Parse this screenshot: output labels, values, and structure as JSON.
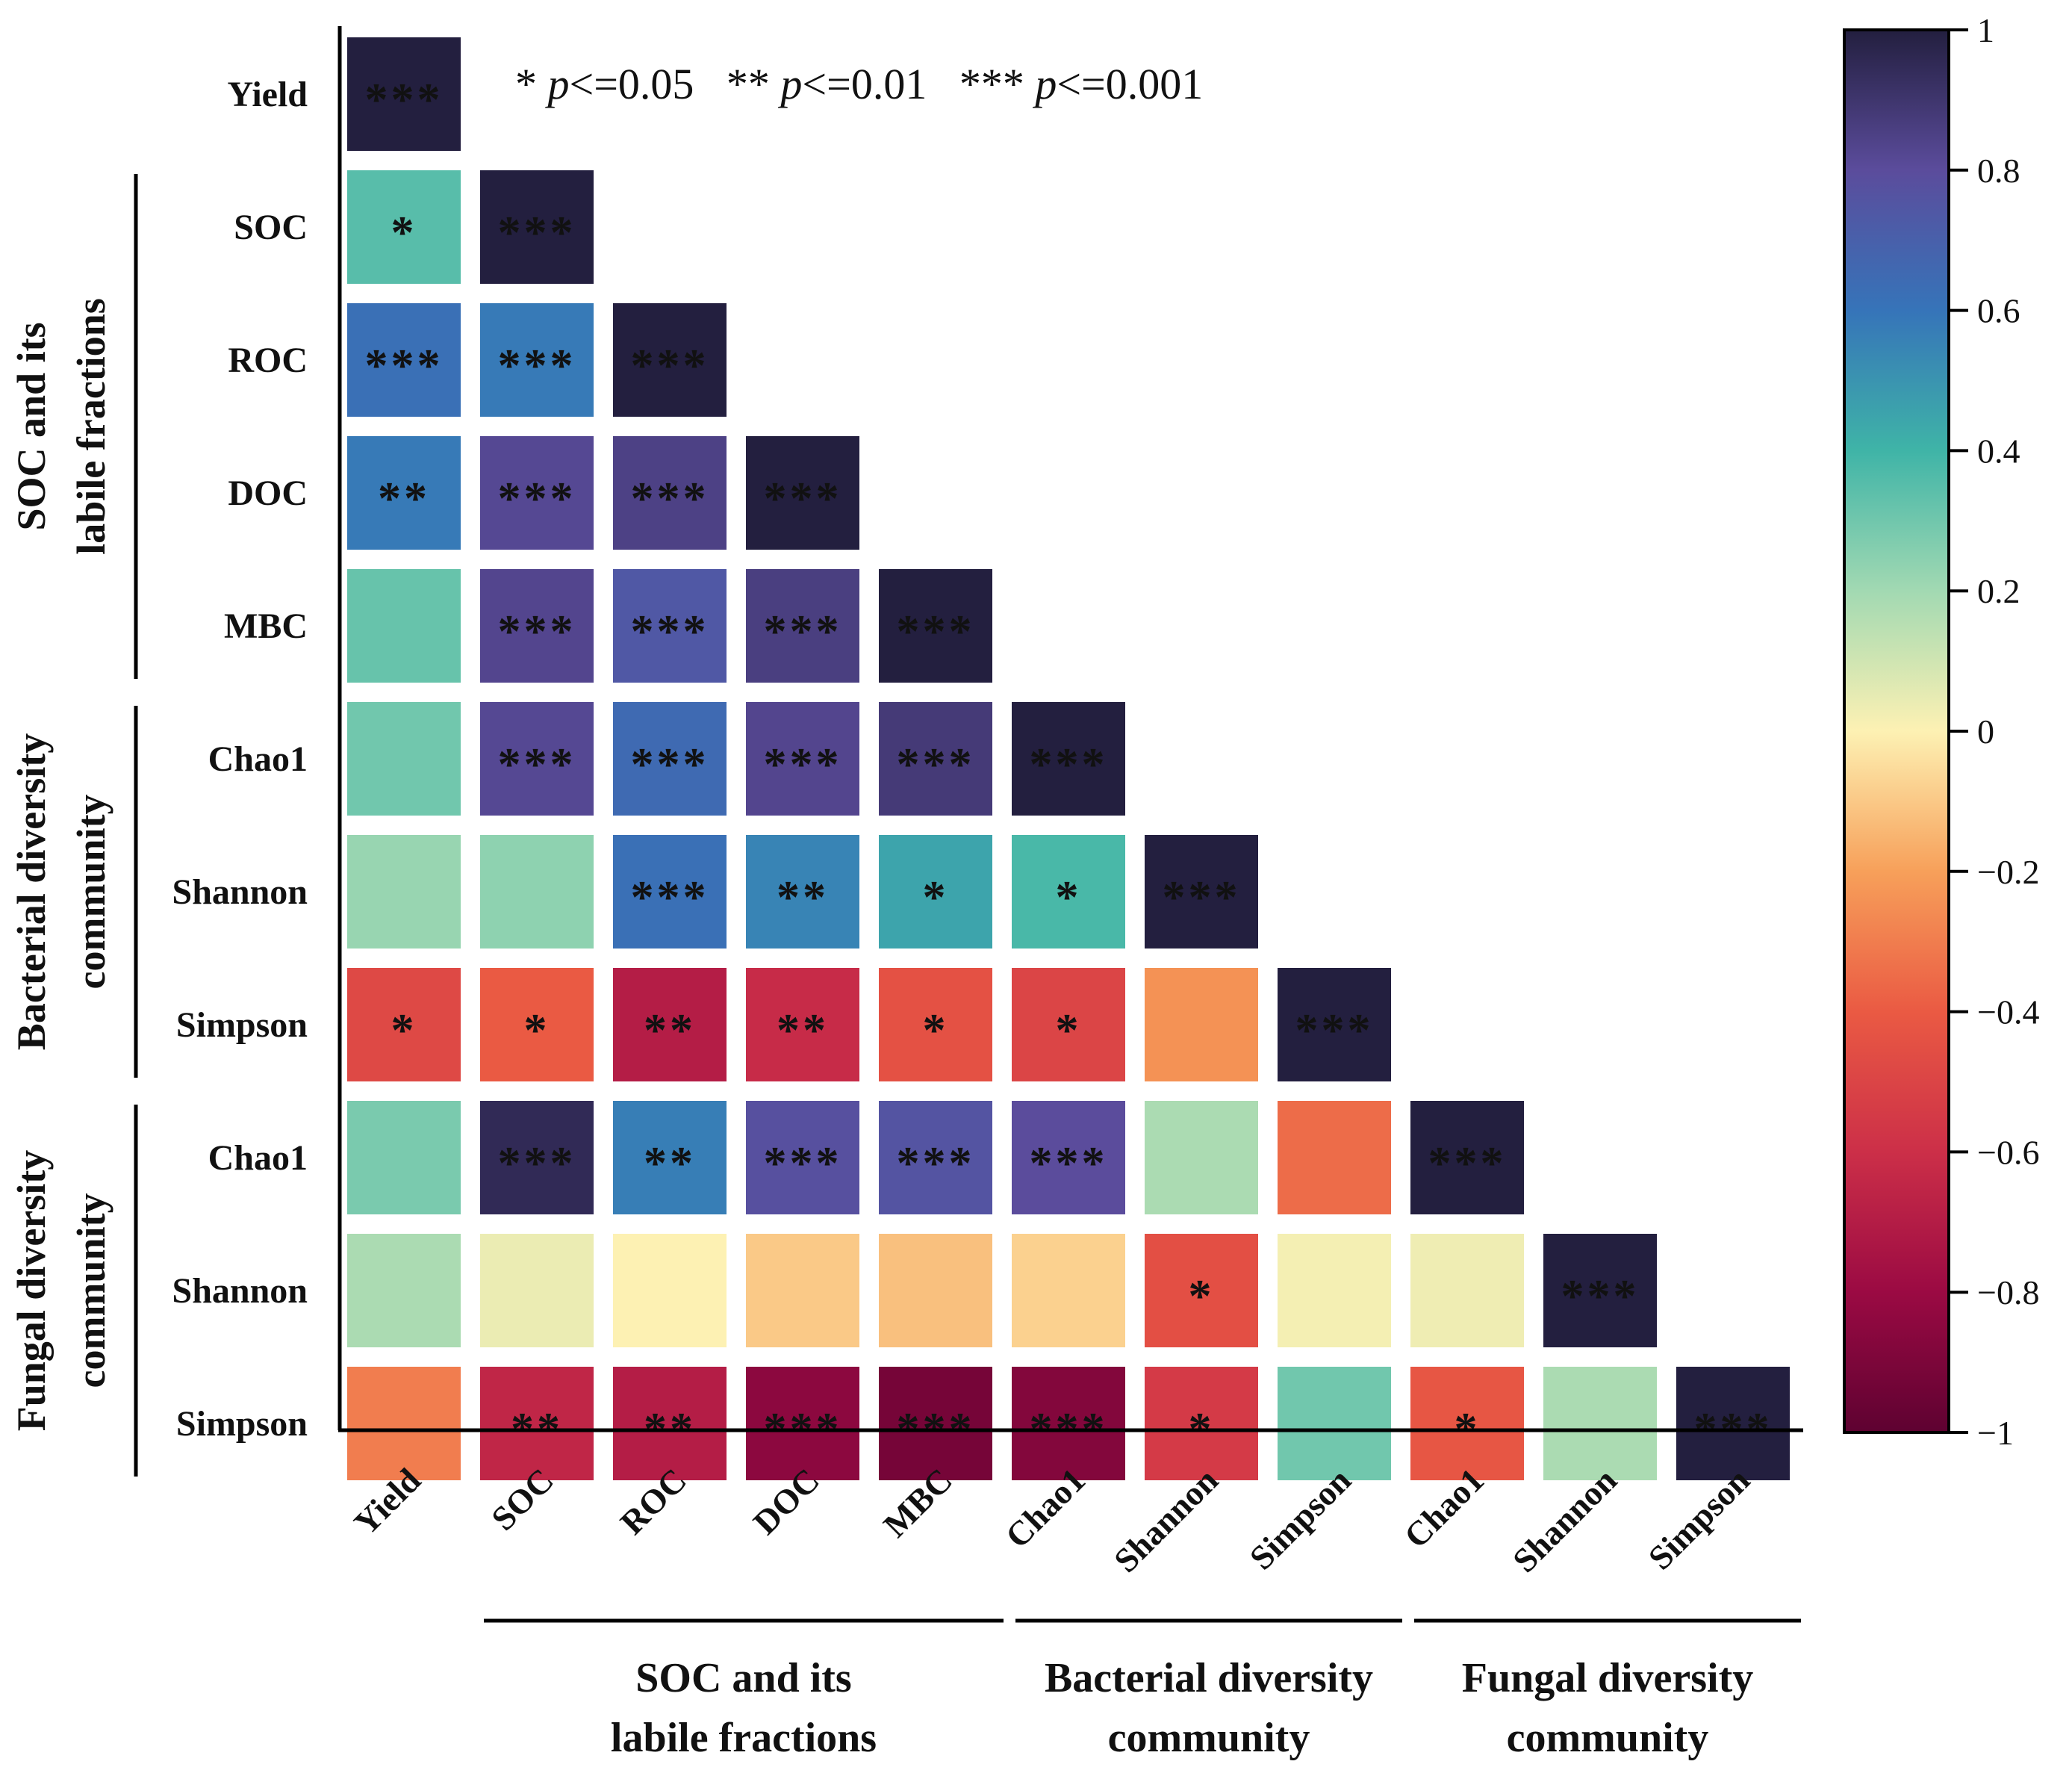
{
  "chart_data": {
    "type": "heatmap",
    "title": "",
    "row_labels": [
      "Yield",
      "SOC",
      "ROC",
      "DOC",
      "MBC",
      "Chao1",
      "Shannon",
      "Simpson",
      "Chao1",
      "Shannon",
      "Simpson"
    ],
    "column_labels": [
      "Yield",
      "SOC",
      "ROC",
      "DOC",
      "MBC",
      "Chao1",
      "Shannon",
      "Simpson",
      "Chao1",
      "Shannon",
      "Simpson"
    ],
    "values": [
      [
        1.0
      ],
      [
        0.35,
        1.0
      ],
      [
        0.62,
        0.58,
        1.0
      ],
      [
        0.58,
        0.82,
        0.85,
        1.0
      ],
      [
        0.32,
        0.83,
        0.74,
        0.86,
        1.0
      ],
      [
        0.3,
        0.82,
        0.65,
        0.83,
        0.88,
        1.0
      ],
      [
        0.22,
        0.24,
        0.62,
        0.55,
        0.45,
        0.38,
        1.0
      ],
      [
        -0.48,
        -0.4,
        -0.7,
        -0.62,
        -0.44,
        -0.5,
        -0.24,
        1.0
      ],
      [
        0.28,
        0.95,
        0.57,
        0.78,
        0.76,
        0.8,
        0.18,
        -0.35,
        1.0
      ],
      [
        0.18,
        0.04,
        0.0,
        -0.1,
        -0.12,
        -0.08,
        -0.45,
        0.02,
        0.03,
        1.0
      ],
      [
        -0.3,
        -0.65,
        -0.7,
        -0.85,
        -0.92,
        -0.88,
        -0.55,
        0.3,
        -0.42,
        0.18,
        1.0
      ]
    ],
    "significance": [
      [
        "***"
      ],
      [
        "*",
        "***"
      ],
      [
        "***",
        "***",
        "***"
      ],
      [
        "**",
        "***",
        "***",
        "***"
      ],
      [
        "",
        "***",
        "***",
        "***",
        "***"
      ],
      [
        "",
        "***",
        "***",
        "***",
        "***",
        "***"
      ],
      [
        "",
        "",
        "***",
        "**",
        "*",
        "*",
        "***"
      ],
      [
        "*",
        "*",
        "**",
        "**",
        "*",
        "*",
        "",
        "***"
      ],
      [
        "",
        "***",
        "**",
        "***",
        "***",
        "***",
        "",
        "",
        "***"
      ],
      [
        "",
        "",
        "",
        "",
        "",
        "",
        "*",
        "",
        "",
        "***"
      ],
      [
        "",
        "**",
        "**",
        "***",
        "***",
        "***",
        "*",
        "",
        "*",
        "",
        "***"
      ]
    ],
    "significance_legend": [
      {
        "stars": "*",
        "p_text": "p",
        "rest": "<=0.05"
      },
      {
        "stars": "**",
        "p_text": "p",
        "rest": "<=0.01"
      },
      {
        "stars": "***",
        "p_text": "p",
        "rest": "<=0.001"
      }
    ],
    "row_groups": [
      {
        "label": "SOC and its labile fractions",
        "lines": [
          "SOC and its",
          "labile fractions"
        ],
        "rows": [
          1,
          4
        ]
      },
      {
        "label": "Bacterial diversity community",
        "lines": [
          "Bacterial diversity",
          "community"
        ],
        "rows": [
          5,
          7
        ]
      },
      {
        "label": "Fungal diversity community",
        "lines": [
          "Fungal diversity",
          "community"
        ],
        "rows": [
          8,
          10
        ]
      }
    ],
    "column_groups": [
      {
        "label": "SOC and its labile fractions",
        "lines": [
          "SOC and its",
          "labile fractions"
        ],
        "cols": [
          1,
          4
        ]
      },
      {
        "label": "Bacterial diversity community",
        "lines": [
          "Bacterial diversity",
          "community"
        ],
        "cols": [
          5,
          7
        ]
      },
      {
        "label": "Fungal diversity community",
        "lines": [
          "Fungal diversity",
          "community"
        ],
        "cols": [
          8,
          10
        ]
      }
    ],
    "colorbar": {
      "range": [
        -1,
        1
      ],
      "ticks": [
        1,
        0.8,
        0.6,
        0.4,
        0.2,
        0,
        -0.2,
        -0.4,
        -0.6,
        -0.8,
        -1
      ],
      "tick_labels": [
        "1",
        "0.8",
        "0.6",
        "0.4",
        "0.2",
        "0",
        "−0.2",
        "−0.4",
        "−0.6",
        "−0.8",
        "−1"
      ],
      "colormap_stops": [
        {
          "v": -1.0,
          "color": "#5e0231"
        },
        {
          "v": -0.8,
          "color": "#9b0a43"
        },
        {
          "v": -0.6,
          "color": "#cc2f48"
        },
        {
          "v": -0.4,
          "color": "#ea5a43"
        },
        {
          "v": -0.2,
          "color": "#f7a05a"
        },
        {
          "v": 0.0,
          "color": "#fdf1b3"
        },
        {
          "v": 0.2,
          "color": "#a2d9b2"
        },
        {
          "v": 0.4,
          "color": "#3fb4a7"
        },
        {
          "v": 0.6,
          "color": "#3674b9"
        },
        {
          "v": 0.8,
          "color": "#5b4c9c"
        },
        {
          "v": 1.0,
          "color": "#231f3f"
        }
      ]
    }
  }
}
